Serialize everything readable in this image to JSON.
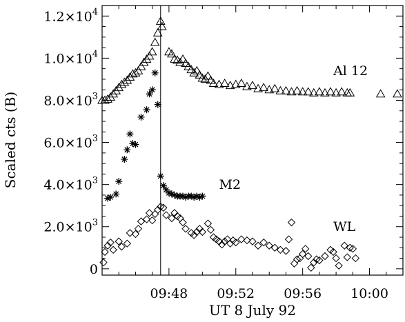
{
  "chart_data": {
    "type": "scatter",
    "title": "",
    "xlabel": "UT 8 July 92",
    "ylabel": "Scaled cts (B)",
    "xlim": [
      "09:44",
      "10:02"
    ],
    "ylim": [
      -300,
      12500
    ],
    "grid": false,
    "legend": "none",
    "x_ticks": [
      {
        "value": "09:48",
        "label": "09:48"
      },
      {
        "value": "09:52",
        "label": "09:52"
      },
      {
        "value": "09:56",
        "label": "09:56"
      },
      {
        "value": "10:00",
        "label": "10:00"
      }
    ],
    "y_ticks": [
      {
        "value": 0,
        "label": "0",
        "exp": ""
      },
      {
        "value": 2000,
        "label": "2.0×10",
        "exp": "3"
      },
      {
        "value": 4000,
        "label": "4.0×10",
        "exp": "3"
      },
      {
        "value": 6000,
        "label": "6.0×10",
        "exp": "3"
      },
      {
        "value": 8000,
        "label": "8.0×10",
        "exp": "3"
      },
      {
        "value": 10000,
        "label": "1.0×10",
        "exp": "4"
      },
      {
        "value": 12000,
        "label": "1.2×10",
        "exp": "4"
      }
    ],
    "vertical_line": {
      "x": "09:47:30"
    },
    "series": [
      {
        "name": "Al 12",
        "marker": "triangle",
        "points": [
          [
            "09:44:00",
            8000
          ],
          [
            "09:44:10",
            8000
          ],
          [
            "09:44:20",
            8050
          ],
          [
            "09:44:30",
            8150
          ],
          [
            "09:44:40",
            8300
          ],
          [
            "09:44:50",
            8450
          ],
          [
            "09:45:00",
            8600
          ],
          [
            "09:45:10",
            8750
          ],
          [
            "09:45:20",
            8850
          ],
          [
            "09:45:30",
            8950
          ],
          [
            "09:45:40",
            9100
          ],
          [
            "09:45:50",
            9250
          ],
          [
            "09:46:00",
            9300
          ],
          [
            "09:46:10",
            9400
          ],
          [
            "09:46:20",
            9600
          ],
          [
            "09:46:30",
            9800
          ],
          [
            "09:46:40",
            9950
          ],
          [
            "09:46:50",
            10100
          ],
          [
            "09:47:00",
            10300
          ],
          [
            "09:47:10",
            10750
          ],
          [
            "09:47:20",
            11200
          ],
          [
            "09:47:30",
            11750
          ],
          [
            "09:47:35",
            11500
          ],
          [
            "09:48:00",
            10300
          ],
          [
            "09:48:10",
            10200
          ],
          [
            "09:48:20",
            9950
          ],
          [
            "09:48:30",
            9900
          ],
          [
            "09:48:40",
            9800
          ],
          [
            "09:48:50",
            9950
          ],
          [
            "09:49:00",
            9750
          ],
          [
            "09:49:10",
            9600
          ],
          [
            "09:49:20",
            9450
          ],
          [
            "09:49:30",
            9300
          ],
          [
            "09:49:40",
            9400
          ],
          [
            "09:49:50",
            9200
          ],
          [
            "09:50:00",
            9050
          ],
          [
            "09:50:10",
            9000
          ],
          [
            "09:50:20",
            9150
          ],
          [
            "09:50:30",
            8950
          ],
          [
            "09:50:40",
            8800
          ],
          [
            "09:51:00",
            8750
          ],
          [
            "09:51:20",
            8800
          ],
          [
            "09:51:40",
            8700
          ],
          [
            "09:52:00",
            8750
          ],
          [
            "09:52:20",
            8800
          ],
          [
            "09:52:40",
            8650
          ],
          [
            "09:53:00",
            8700
          ],
          [
            "09:53:20",
            8550
          ],
          [
            "09:53:40",
            8600
          ],
          [
            "09:54:00",
            8500
          ],
          [
            "09:54:20",
            8550
          ],
          [
            "09:54:40",
            8450
          ],
          [
            "09:55:00",
            8450
          ],
          [
            "09:55:20",
            8400
          ],
          [
            "09:55:40",
            8450
          ],
          [
            "09:56:00",
            8400
          ],
          [
            "09:56:20",
            8400
          ],
          [
            "09:56:40",
            8350
          ],
          [
            "09:57:00",
            8400
          ],
          [
            "09:57:20",
            8350
          ],
          [
            "09:57:40",
            8400
          ],
          [
            "09:58:00",
            8350
          ],
          [
            "09:58:20",
            8400
          ],
          [
            "09:58:40",
            8350
          ],
          [
            "09:58:50",
            8350
          ],
          [
            "10:00:40",
            8300
          ],
          [
            "10:01:40",
            8300
          ]
        ]
      },
      {
        "name": "M2",
        "marker": "asterisk",
        "points": [
          [
            "09:44:20",
            3350
          ],
          [
            "09:44:30",
            3400
          ],
          [
            "09:44:50",
            3550
          ],
          [
            "09:45:00",
            4150
          ],
          [
            "09:45:20",
            5200
          ],
          [
            "09:45:30",
            5650
          ],
          [
            "09:45:40",
            6400
          ],
          [
            "09:45:50",
            5950
          ],
          [
            "09:46:00",
            5900
          ],
          [
            "09:46:20",
            7200
          ],
          [
            "09:46:40",
            7550
          ],
          [
            "09:46:50",
            8300
          ],
          [
            "09:47:00",
            8500
          ],
          [
            "09:47:10",
            9300
          ],
          [
            "09:47:20",
            7800
          ],
          [
            "09:47:30",
            4400
          ],
          [
            "09:47:40",
            3950
          ],
          [
            "09:47:50",
            3750
          ],
          [
            "09:48:00",
            3600
          ],
          [
            "09:48:10",
            3550
          ],
          [
            "09:48:20",
            3500
          ],
          [
            "09:48:30",
            3450
          ],
          [
            "09:48:40",
            3450
          ],
          [
            "09:48:50",
            3450
          ],
          [
            "09:49:00",
            3400
          ],
          [
            "09:49:10",
            3450
          ],
          [
            "09:49:20",
            3450
          ],
          [
            "09:49:30",
            3400
          ],
          [
            "09:49:40",
            3450
          ],
          [
            "09:49:50",
            3400
          ],
          [
            "09:50:00",
            3450
          ]
        ]
      },
      {
        "name": "WL",
        "marker": "diamond",
        "points": [
          [
            "09:44:05",
            300
          ],
          [
            "09:44:10",
            800
          ],
          [
            "09:44:20",
            1100
          ],
          [
            "09:44:30",
            1250
          ],
          [
            "09:44:40",
            900
          ],
          [
            "09:45:00",
            1300
          ],
          [
            "09:45:10",
            1050
          ],
          [
            "09:45:30",
            1200
          ],
          [
            "09:45:40",
            1700
          ],
          [
            "09:46:00",
            1650
          ],
          [
            "09:46:10",
            1900
          ],
          [
            "09:46:20",
            2250
          ],
          [
            "09:46:40",
            2350
          ],
          [
            "09:46:50",
            2650
          ],
          [
            "09:47:00",
            2300
          ],
          [
            "09:47:10",
            2600
          ],
          [
            "09:47:20",
            2800
          ],
          [
            "09:47:30",
            2950
          ],
          [
            "09:47:40",
            2900
          ],
          [
            "09:47:50",
            2550
          ],
          [
            "09:48:10",
            2400
          ],
          [
            "09:48:20",
            2650
          ],
          [
            "09:48:30",
            2500
          ],
          [
            "09:48:40",
            2400
          ],
          [
            "09:48:50",
            2200
          ],
          [
            "09:49:00",
            1900
          ],
          [
            "09:49:20",
            1700
          ],
          [
            "09:49:30",
            1600
          ],
          [
            "09:49:40",
            1750
          ],
          [
            "09:49:50",
            1900
          ],
          [
            "09:50:00",
            1750
          ],
          [
            "09:50:20",
            2150
          ],
          [
            "09:50:30",
            1850
          ],
          [
            "09:50:40",
            1500
          ],
          [
            "09:50:50",
            1400
          ],
          [
            "09:51:00",
            1300
          ],
          [
            "09:51:10",
            1150
          ],
          [
            "09:51:20",
            1300
          ],
          [
            "09:51:30",
            1400
          ],
          [
            "09:51:40",
            1200
          ],
          [
            "09:51:50",
            1350
          ],
          [
            "09:52:00",
            1250
          ],
          [
            "09:52:20",
            1400
          ],
          [
            "09:52:40",
            1350
          ],
          [
            "09:53:00",
            1300
          ],
          [
            "09:53:20",
            1100
          ],
          [
            "09:53:40",
            1250
          ],
          [
            "09:54:00",
            1100
          ],
          [
            "09:54:20",
            1000
          ],
          [
            "09:54:40",
            900
          ],
          [
            "09:55:00",
            850
          ],
          [
            "09:55:10",
            1400
          ],
          [
            "09:55:20",
            2200
          ],
          [
            "09:55:30",
            250
          ],
          [
            "09:55:40",
            450
          ],
          [
            "09:55:50",
            500
          ],
          [
            "09:56:00",
            700
          ],
          [
            "09:56:10",
            950
          ],
          [
            "09:56:20",
            600
          ],
          [
            "09:56:30",
            50
          ],
          [
            "09:56:40",
            300
          ],
          [
            "09:56:50",
            450
          ],
          [
            "09:57:00",
            400
          ],
          [
            "09:57:20",
            600
          ],
          [
            "09:57:40",
            900
          ],
          [
            "09:57:50",
            800
          ],
          [
            "09:58:00",
            500
          ],
          [
            "09:58:10",
            150
          ],
          [
            "09:58:30",
            1100
          ],
          [
            "09:58:40",
            550
          ],
          [
            "09:58:50",
            1000
          ],
          [
            "09:59:00",
            950
          ],
          [
            "09:59:10",
            500
          ]
        ]
      }
    ],
    "series_labels": [
      {
        "text": "Al 12",
        "at_x": "09:57:50",
        "at_y": 9200
      },
      {
        "text": "M2",
        "at_x": "09:51:00",
        "at_y": 3800
      },
      {
        "text": "WL",
        "at_x": "09:57:50",
        "at_y": 1800
      }
    ]
  }
}
